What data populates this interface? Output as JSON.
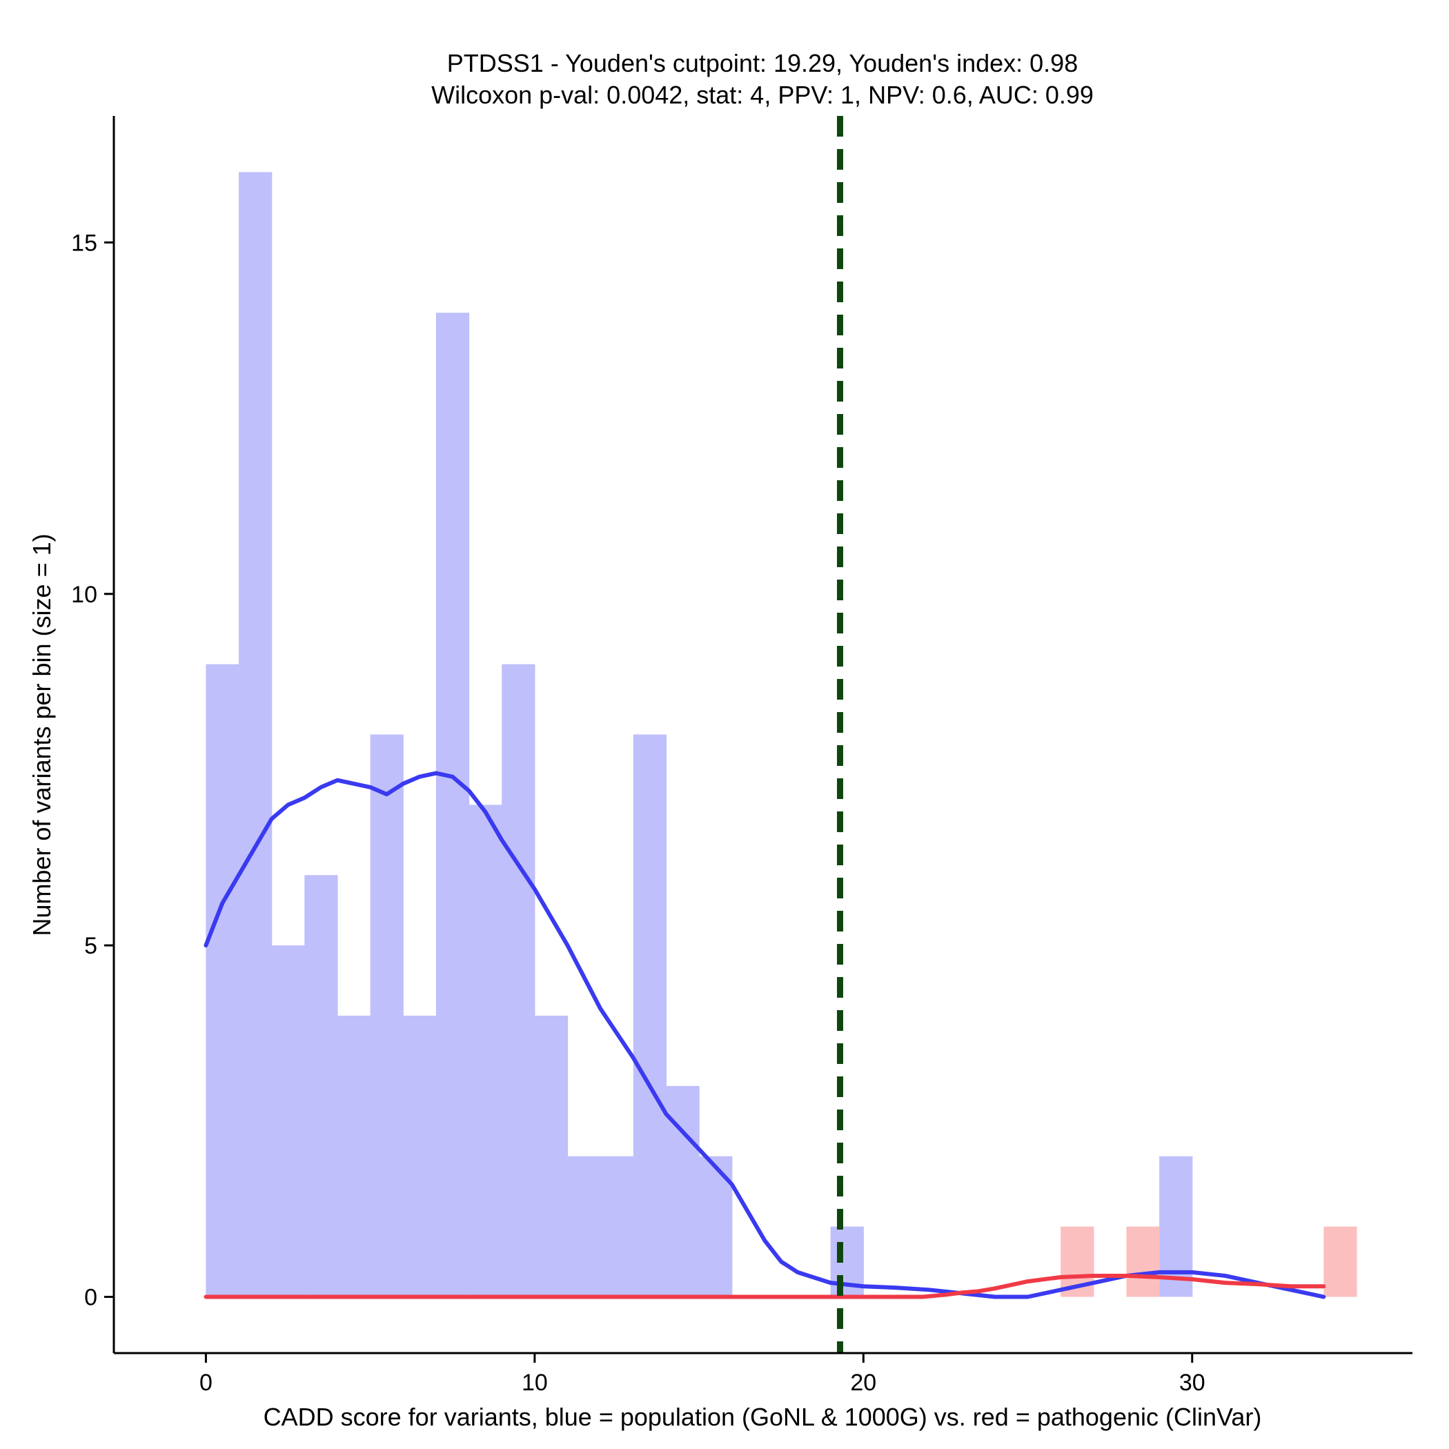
{
  "chart_data": {
    "type": "bar",
    "title": [
      "PTDSS1 - Youden's cutpoint: 19.29, Youden's index: 0.98",
      "Wilcoxon p-val: 0.0042, stat: 4, PPV: 1, NPV: 0.6, AUC: 0.99"
    ],
    "xlabel": "CADD score for variants, blue = population (GoNL & 1000G) vs. red = pathogenic (ClinVar)",
    "ylabel": "Number of variants per bin (size = 1)",
    "xlim": [
      -2.8,
      36.7
    ],
    "ylim": [
      -0.8,
      16.8
    ],
    "x_ticks": [
      0,
      10,
      20,
      30
    ],
    "y_ticks": [
      0,
      5,
      10,
      15
    ],
    "bin_width": 1,
    "colors": {
      "population_bar": "#bfbffb",
      "pathogenic_bar": "#fcbfbf",
      "population_line": "#3a3af0",
      "pathogenic_line": "#f03a46",
      "cutpoint_line": "#0e470e"
    },
    "cutpoint": 19.29,
    "series": [
      {
        "role": "population",
        "kind": "histogram",
        "bins": [
          {
            "x0": 0,
            "count": 9
          },
          {
            "x0": 1,
            "count": 16
          },
          {
            "x0": 2,
            "count": 5
          },
          {
            "x0": 3,
            "count": 6
          },
          {
            "x0": 4,
            "count": 4
          },
          {
            "x0": 5,
            "count": 8
          },
          {
            "x0": 6,
            "count": 4
          },
          {
            "x0": 7,
            "count": 14
          },
          {
            "x0": 8,
            "count": 7
          },
          {
            "x0": 9,
            "count": 9
          },
          {
            "x0": 10,
            "count": 4
          },
          {
            "x0": 11,
            "count": 2
          },
          {
            "x0": 12,
            "count": 2
          },
          {
            "x0": 13,
            "count": 8
          },
          {
            "x0": 14,
            "count": 3
          },
          {
            "x0": 15,
            "count": 2
          },
          {
            "x0": 19,
            "count": 1
          },
          {
            "x0": 29,
            "count": 2
          }
        ]
      },
      {
        "role": "pathogenic",
        "kind": "histogram",
        "bins": [
          {
            "x0": 26,
            "count": 1
          },
          {
            "x0": 28,
            "count": 1
          },
          {
            "x0": 34,
            "count": 1
          }
        ]
      },
      {
        "role": "population",
        "kind": "density",
        "x": [
          0,
          0.5,
          1,
          1.5,
          2,
          2.5,
          3,
          3.5,
          4,
          4.5,
          5,
          5.5,
          6,
          6.5,
          7,
          7.5,
          8,
          8.5,
          9,
          9.5,
          10,
          11,
          12,
          13,
          14,
          15,
          16,
          17,
          17.5,
          18,
          19,
          20,
          21,
          22,
          23,
          24,
          25,
          26,
          27,
          28,
          29,
          30,
          31,
          32,
          33,
          34
        ],
        "y": [
          5.0,
          5.6,
          6.0,
          6.4,
          6.8,
          7.0,
          7.1,
          7.25,
          7.35,
          7.3,
          7.25,
          7.15,
          7.3,
          7.4,
          7.45,
          7.4,
          7.2,
          6.9,
          6.5,
          6.15,
          5.8,
          5.0,
          4.1,
          3.4,
          2.6,
          2.1,
          1.6,
          0.8,
          0.5,
          0.35,
          0.2,
          0.15,
          0.13,
          0.1,
          0.05,
          0.0,
          0.0,
          0.1,
          0.2,
          0.3,
          0.35,
          0.35,
          0.3,
          0.2,
          0.1,
          0.0
        ]
      },
      {
        "role": "pathogenic",
        "kind": "density",
        "x": [
          0,
          5,
          10,
          15,
          20,
          21.8,
          22.5,
          23,
          23.5,
          24,
          25,
          26,
          27,
          28,
          29,
          30,
          31,
          32,
          33,
          34
        ],
        "y": [
          0,
          0,
          0,
          0,
          0,
          0.0,
          0.03,
          0.06,
          0.08,
          0.12,
          0.22,
          0.28,
          0.3,
          0.3,
          0.28,
          0.25,
          0.2,
          0.18,
          0.15,
          0.15
        ]
      }
    ]
  }
}
